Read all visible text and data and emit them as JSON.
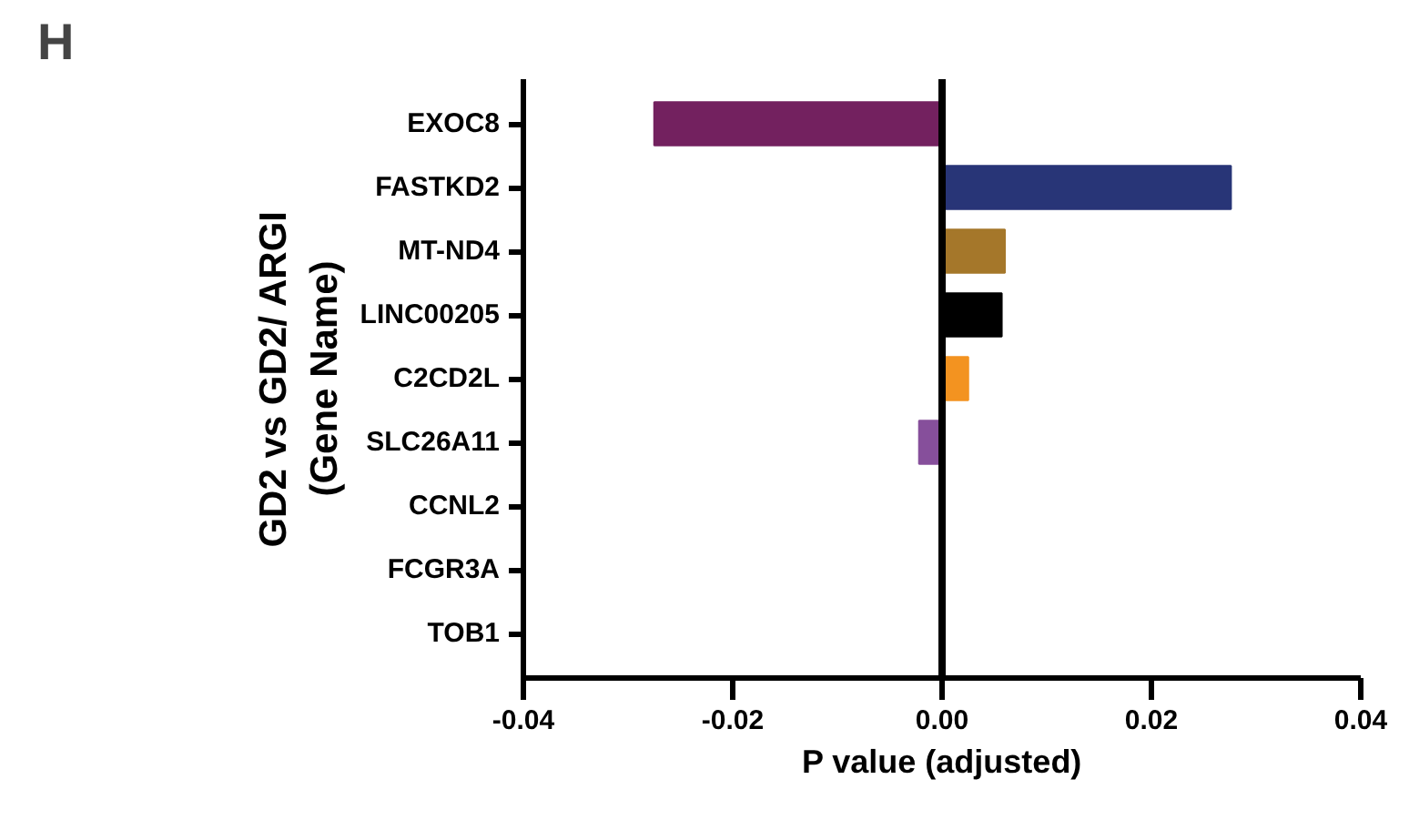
{
  "chart_data": {
    "type": "bar",
    "orientation": "horizontal",
    "xlabel": "P value (adjusted)",
    "ylabel": "GD2 vs GD2/ ARGI\n(Gene Name)",
    "annotations": [
      "H"
    ],
    "categories": [
      "EXOC8",
      "FASTKD2",
      "MT-ND4",
      "LINC00205",
      "C2CD2L",
      "SLC26A11",
      "CCNL2",
      "FCGR3A",
      "TOB1"
    ],
    "values": [
      -0.0275,
      0.0276,
      0.006,
      0.0057,
      0.0025,
      -0.0022,
      0,
      0,
      0
    ],
    "colors": [
      "#73215f",
      "#283577",
      "#a5772a",
      "#000000",
      "#f39320",
      "#864f9b",
      "#000000",
      "#000000",
      "#000000"
    ],
    "xlim": [
      -0.04,
      0.04
    ],
    "xticks": [
      {
        "value": -0.04,
        "label": "-0.04"
      },
      {
        "value": -0.02,
        "label": "-0.02"
      },
      {
        "value": 0,
        "label": "0.00"
      },
      {
        "value": 0.02,
        "label": "0.02"
      },
      {
        "value": 0.04,
        "label": "0.04"
      }
    ],
    "ref_lines": [
      {
        "axis": "x",
        "value": 0,
        "color": "#000000"
      }
    ],
    "grid": false
  }
}
